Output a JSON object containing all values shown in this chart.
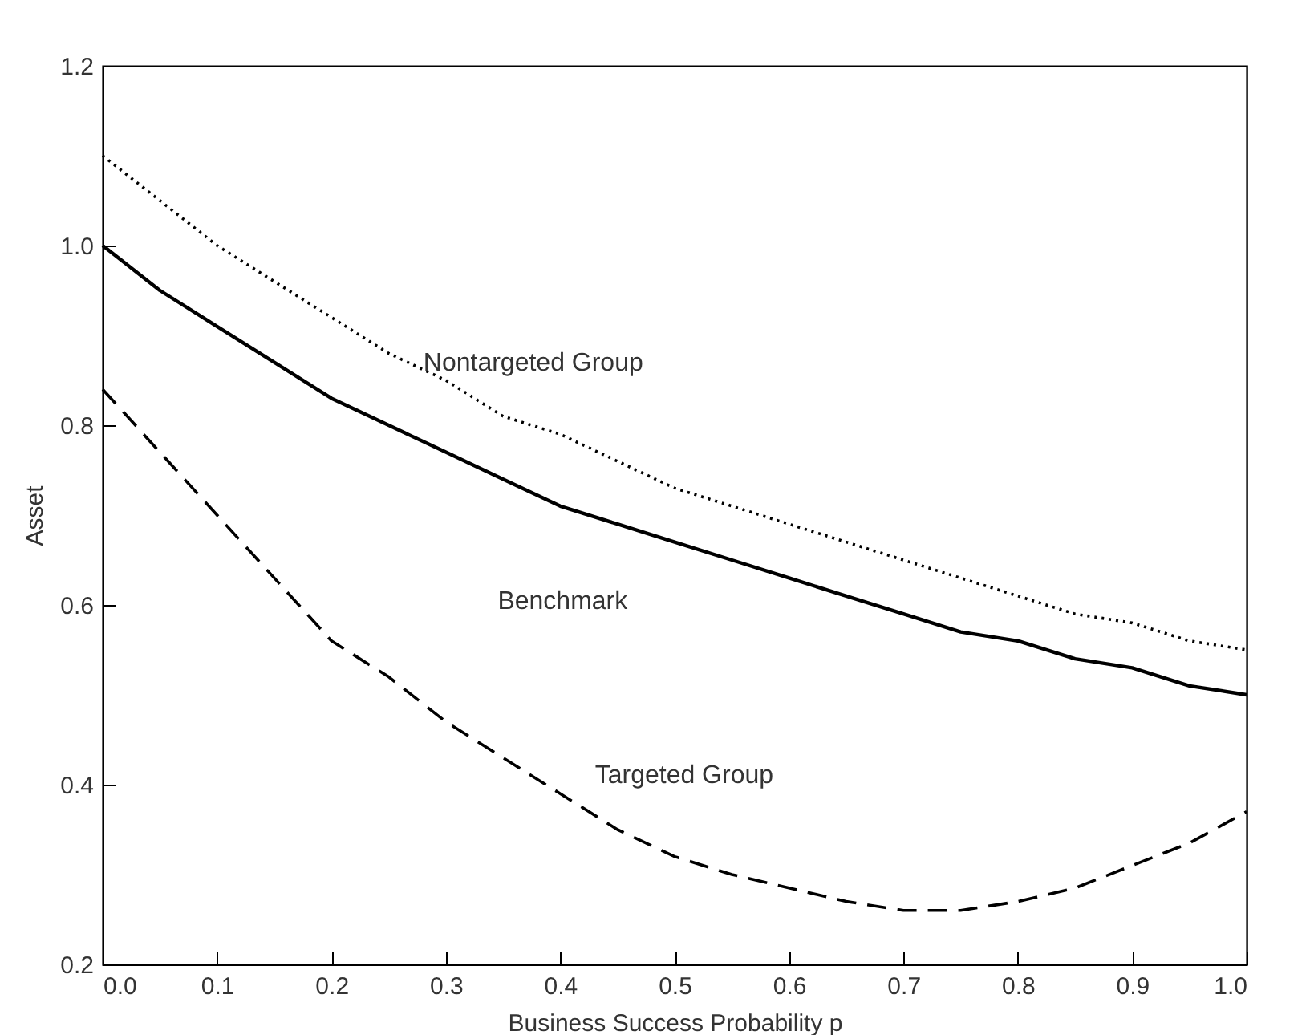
{
  "chart_data": {
    "type": "line",
    "xlabel": "Business Success Probability p",
    "ylabel": "Asset",
    "x": [
      0,
      0.05,
      0.1,
      0.15,
      0.2,
      0.25,
      0.3,
      0.35,
      0.4,
      0.45,
      0.5,
      0.55,
      0.6,
      0.65,
      0.7,
      0.75,
      0.8,
      0.85,
      0.9,
      0.95,
      1.0
    ],
    "series": [
      {
        "name": "Nontargeted Group",
        "color": "#000000",
        "line_style": "dotted",
        "values": [
          1.1,
          1.05,
          1.0,
          0.96,
          0.92,
          0.88,
          0.85,
          0.81,
          0.79,
          0.76,
          0.73,
          0.71,
          0.69,
          0.67,
          0.65,
          0.63,
          0.61,
          0.59,
          0.58,
          0.56,
          0.55
        ]
      },
      {
        "name": "Benchmark",
        "color": "#000000",
        "line_style": "solid",
        "values": [
          1.0,
          0.95,
          0.91,
          0.87,
          0.83,
          0.8,
          0.77,
          0.74,
          0.71,
          0.69,
          0.67,
          0.65,
          0.63,
          0.61,
          0.59,
          0.57,
          0.56,
          0.54,
          0.53,
          0.51,
          0.5
        ]
      },
      {
        "name": "Targeted Group",
        "color": "#000000",
        "line_style": "dashed",
        "values": [
          0.84,
          0.77,
          0.7,
          0.63,
          0.56,
          0.52,
          0.47,
          0.43,
          0.39,
          0.35,
          0.32,
          0.3,
          0.285,
          0.27,
          0.26,
          0.26,
          0.27,
          0.285,
          0.31,
          0.335,
          0.37
        ]
      }
    ],
    "xlim": [
      0,
      1
    ],
    "ylim": [
      0.2,
      1.2
    ],
    "xticks": [
      {
        "value": 0,
        "label": "0.0"
      },
      0.1,
      0.2,
      0.3,
      0.4,
      0.5,
      0.6,
      0.7,
      0.8,
      0.9,
      {
        "value": 1,
        "label": "1.0"
      }
    ],
    "yticks": [
      0.2,
      0.4,
      0.6,
      0.8,
      {
        "value": 1,
        "label": "1.0"
      },
      1.2
    ],
    "grid": false,
    "legend": false,
    "marker": "none"
  }
}
